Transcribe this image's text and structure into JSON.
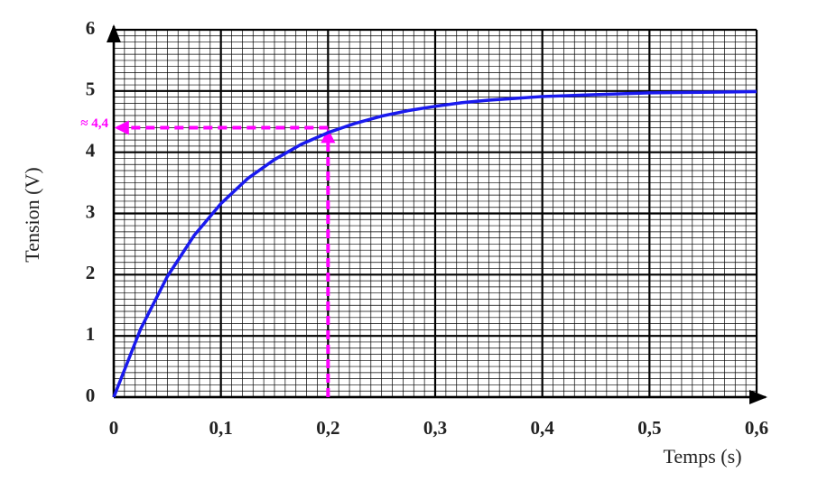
{
  "chart_data": {
    "type": "line",
    "x_label": "Temps (s)",
    "y_label": "Tension (V)",
    "x": [
      0,
      0.025,
      0.05,
      0.075,
      0.1,
      0.125,
      0.15,
      0.175,
      0.2,
      0.225,
      0.25,
      0.275,
      0.3,
      0.325,
      0.35,
      0.375,
      0.4,
      0.45,
      0.5,
      0.55,
      0.6
    ],
    "series": [
      {
        "color": "#1a1aee",
        "values": [
          0,
          1.11,
          1.97,
          2.64,
          3.16,
          3.57,
          3.88,
          4.13,
          4.32,
          4.47,
          4.59,
          4.68,
          4.75,
          4.81,
          4.85,
          4.88,
          4.91,
          4.94,
          4.97,
          4.98,
          4.99
        ]
      }
    ],
    "xlim": [
      0,
      0.6
    ],
    "xticks": [
      0,
      {
        "value": 0.1,
        "label": "0,1"
      },
      {
        "value": 0.2,
        "label": "0,2"
      },
      {
        "value": 0.3,
        "label": "0,3"
      },
      {
        "value": 0.4,
        "label": "0,4"
      },
      {
        "value": 0.5,
        "label": "0,5"
      },
      {
        "value": 0.6,
        "label": "0,6"
      }
    ],
    "ylim": [
      0,
      6
    ],
    "yticks": [
      0,
      1,
      2,
      3,
      4,
      5,
      6
    ],
    "grid": true,
    "minor_divisions": 10,
    "annotation": {
      "text": "≈ 4,4",
      "x": 0.2,
      "y": 4.4,
      "color": "#ff00ff"
    }
  }
}
